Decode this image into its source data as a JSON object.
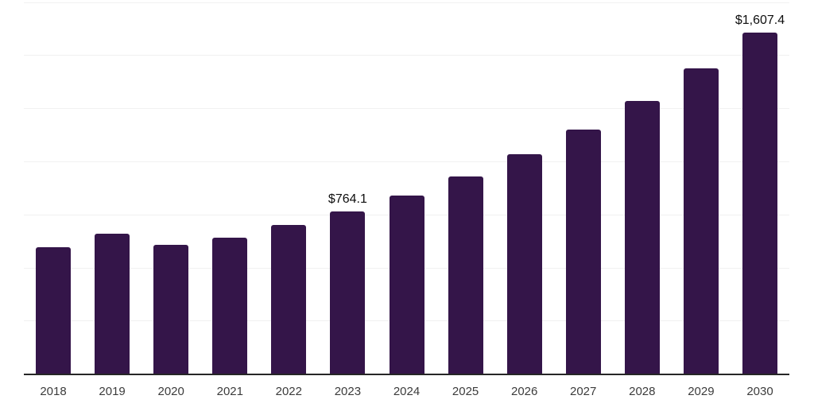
{
  "chart": {
    "background_color": "#ffffff",
    "bar_color": "#341549",
    "gridline_color": "#f1f1f1",
    "axis_line_color": "#262626",
    "tick_text_color": "#3c3c3c",
    "data_label_color": "#0e0e0e"
  },
  "chart_data": {
    "type": "bar",
    "title": "",
    "xlabel": "",
    "ylabel": "",
    "categories": [
      "2018",
      "2019",
      "2020",
      "2021",
      "2022",
      "2023",
      "2024",
      "2025",
      "2026",
      "2027",
      "2028",
      "2029",
      "2030"
    ],
    "values": [
      597,
      660,
      605,
      639,
      701,
      764.1,
      840,
      930,
      1033,
      1148,
      1283,
      1438,
      1607.4
    ],
    "data_labels": [
      {
        "category": "2023",
        "text": "$764.1"
      },
      {
        "category": "2030",
        "text": "$1,607.4"
      }
    ],
    "ylim": [
      0,
      1760
    ],
    "grid_step": 250,
    "grid": "horizontal",
    "legend": "none"
  }
}
